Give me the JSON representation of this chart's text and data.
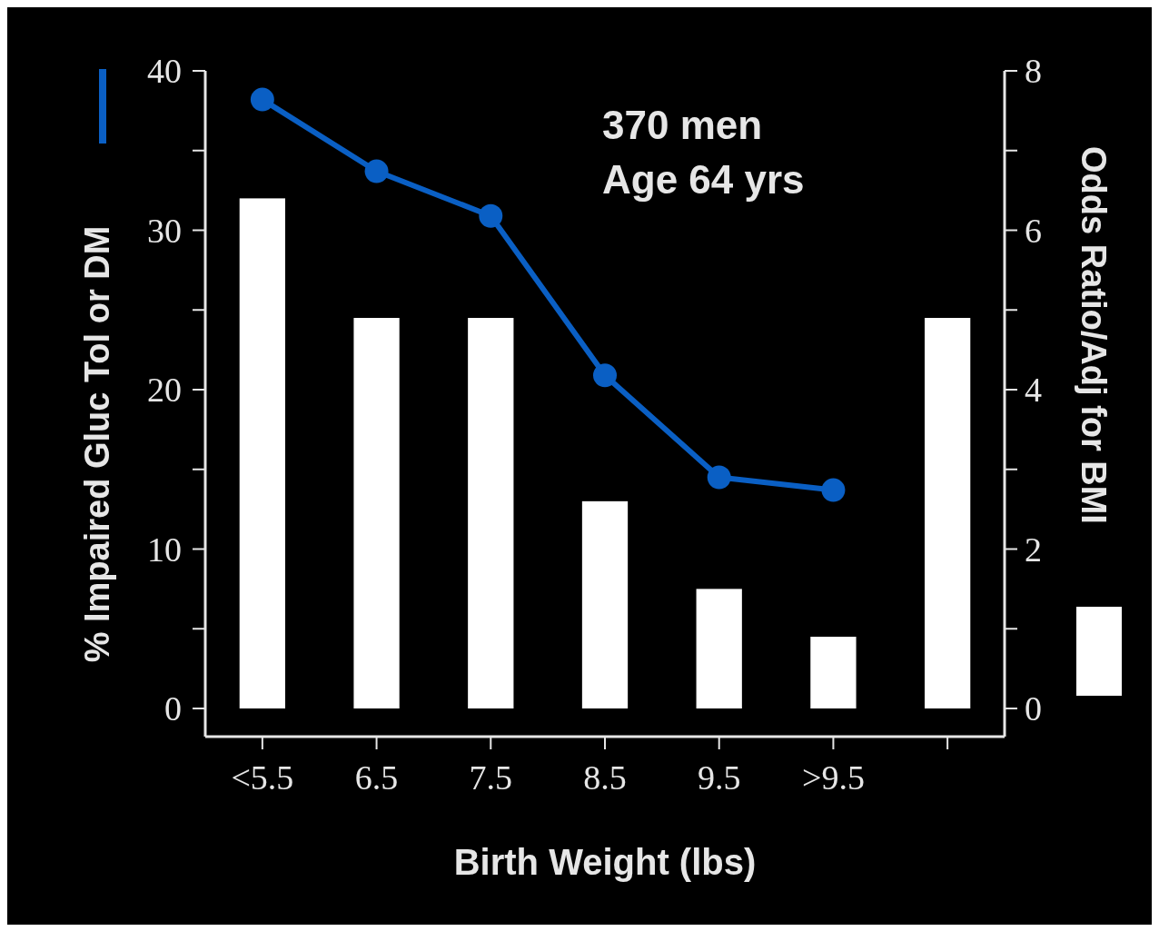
{
  "chart_data": {
    "type": "bar",
    "xlabel": "Birth Weight (lbs)",
    "ylabel": "% Impaired Gluc Tol or DM",
    "y2label": "Odds Ratio/Adj for BMI",
    "categories": [
      "<5.5",
      "6.5",
      "7.5",
      "8.5",
      "9.5",
      ">9.5",
      null
    ],
    "series": [
      {
        "axis": "y2",
        "color": "#ffffff",
        "values": [
          6.4,
          4.9,
          4.9,
          2.6,
          1.5,
          0.9,
          4.9
        ]
      },
      {
        "type": "line",
        "axis": "y",
        "color": "#0a5fc4",
        "values": [
          38.2,
          33.7,
          30.9,
          20.9,
          14.5,
          13.7,
          null
        ]
      }
    ],
    "ylim": [
      0,
      40
    ],
    "yticks": [
      0,
      {
        "value": 5,
        "label": null
      },
      10,
      {
        "value": 15,
        "label": null
      },
      20,
      {
        "value": 25,
        "label": null
      },
      30,
      {
        "value": 35,
        "label": null
      },
      40
    ],
    "y2lim": [
      0,
      8
    ],
    "y2ticks": [
      0,
      {
        "value": 1,
        "label": null
      },
      2,
      {
        "value": 3,
        "label": null
      },
      4,
      {
        "value": 5,
        "label": null
      },
      6,
      {
        "value": 7,
        "label": null
      },
      8
    ],
    "marker": "circle",
    "line_style": "solid",
    "grid": false,
    "annotations": [
      "370 men",
      "Age 64 yrs"
    ]
  }
}
